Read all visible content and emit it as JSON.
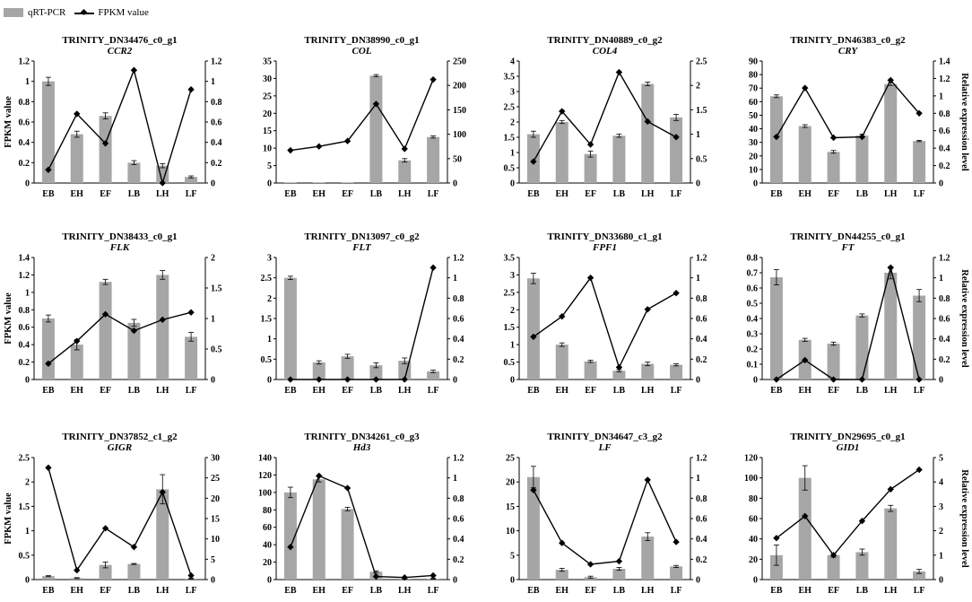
{
  "legend": {
    "bar_label": "qRT-PCR",
    "line_label": "FPKM value"
  },
  "colors": {
    "bar": "#a6a6a6",
    "line": "#000000",
    "axis": "#000000"
  },
  "chart_data": [
    {
      "type": "bar+line",
      "title": "TRINITY_DN34476_c0_g1",
      "gene": "CCR2",
      "categories": [
        "EB",
        "EH",
        "EF",
        "LB",
        "LH",
        "LF"
      ],
      "bars": [
        1.0,
        0.48,
        0.66,
        0.2,
        0.17,
        0.06
      ],
      "bar_err": [
        0.04,
        0.03,
        0.03,
        0.02,
        0.02,
        0.01
      ],
      "line": [
        0.13,
        0.68,
        0.39,
        1.11,
        0.0,
        0.92
      ],
      "left_ylim": [
        0,
        1.2
      ],
      "left_ticks": [
        "0",
        "0.2",
        "0.4",
        "0.6",
        "0.8",
        "1",
        "1.2"
      ],
      "right_ylim": [
        0,
        1.2
      ],
      "right_ticks": [
        "0",
        "0.2",
        "0.4",
        "0.6",
        "0.8",
        "1",
        "1.2"
      ],
      "left_label": "FPKM value",
      "right_label": ""
    },
    {
      "type": "bar+line",
      "title": "TRINITY_DN38990_c0_g1",
      "gene": "COL",
      "categories": [
        "EB",
        "EH",
        "EF",
        "LB",
        "LH",
        "LF"
      ],
      "bars": [
        0.1,
        0.1,
        0.1,
        30.8,
        6.5,
        13.2
      ],
      "bar_err": [
        0,
        0,
        0,
        0.3,
        0.5,
        0.3
      ],
      "line": [
        67,
        75,
        86,
        162,
        70,
        212
      ],
      "left_ylim": [
        0,
        35
      ],
      "left_ticks": [
        "0",
        "5",
        "10",
        "15",
        "20",
        "25",
        "30",
        "35"
      ],
      "right_ylim": [
        0,
        250
      ],
      "right_ticks": [
        "0",
        "50",
        "100",
        "150",
        "200",
        "250"
      ],
      "left_label": "",
      "right_label": ""
    },
    {
      "type": "bar+line",
      "title": "TRINITY_DN40889_c0_g2",
      "gene": "COL4",
      "categories": [
        "EB",
        "EH",
        "EF",
        "LB",
        "LH",
        "LF"
      ],
      "bars": [
        1.6,
        2.0,
        0.95,
        1.55,
        3.25,
        2.15
      ],
      "bar_err": [
        0.1,
        0.05,
        0.1,
        0.05,
        0.06,
        0.1
      ],
      "line": [
        0.44,
        1.47,
        0.79,
        2.27,
        1.26,
        0.94
      ],
      "left_ylim": [
        0,
        4
      ],
      "left_ticks": [
        "0",
        "0.5",
        "1",
        "1.5",
        "2",
        "2.5",
        "3",
        "3.5",
        "4"
      ],
      "right_ylim": [
        0,
        2.5
      ],
      "right_ticks": [
        "0",
        "0.5",
        "1",
        "1.5",
        "2",
        "2.5"
      ],
      "left_label": "",
      "right_label": ""
    },
    {
      "type": "bar+line",
      "title": "TRINITY_DN46383_c0_g2",
      "gene": "CRY",
      "categories": [
        "EB",
        "EH",
        "EF",
        "LB",
        "LH",
        "LF"
      ],
      "bars": [
        64,
        42,
        23,
        35,
        73,
        31
      ],
      "bar_err": [
        1,
        1,
        1,
        1,
        1,
        0.5
      ],
      "line": [
        0.53,
        1.09,
        0.52,
        0.53,
        1.18,
        0.8
      ],
      "left_ylim": [
        0,
        90
      ],
      "left_ticks": [
        "0",
        "10",
        "20",
        "30",
        "40",
        "50",
        "60",
        "70",
        "80",
        "90"
      ],
      "right_ylim": [
        0,
        1.4
      ],
      "right_ticks": [
        "0",
        "0.2",
        "0.4",
        "0.6",
        "0.8",
        "1",
        "1.2",
        "1.4"
      ],
      "left_label": "",
      "right_label": "Relative expression level"
    },
    {
      "type": "bar+line",
      "title": "TRINITY_DN38433_c0_g1",
      "gene": "FLK",
      "categories": [
        "EB",
        "EH",
        "EF",
        "LB",
        "LH",
        "LF"
      ],
      "bars": [
        0.7,
        0.4,
        1.12,
        0.65,
        1.2,
        0.49
      ],
      "bar_err": [
        0.04,
        0.06,
        0.03,
        0.04,
        0.05,
        0.05
      ],
      "line": [
        0.26,
        0.63,
        1.07,
        0.8,
        0.98,
        1.1
      ],
      "left_ylim": [
        0,
        1.4
      ],
      "left_ticks": [
        "0",
        "0.2",
        "0.4",
        "0.6",
        "0.8",
        "1",
        "1.2",
        "1.4"
      ],
      "right_ylim": [
        0,
        2
      ],
      "right_ticks": [
        "0",
        "0.5",
        "1",
        "1.5",
        "2"
      ],
      "left_label": "FPKM value",
      "right_label": ""
    },
    {
      "type": "bar+line",
      "title": "TRINITY_DN13097_c0_g2",
      "gene": "FLT",
      "categories": [
        "EB",
        "EH",
        "EF",
        "LB",
        "LH",
        "LF"
      ],
      "bars": [
        2.5,
        0.42,
        0.57,
        0.35,
        0.46,
        0.2
      ],
      "bar_err": [
        0.04,
        0.04,
        0.05,
        0.06,
        0.07,
        0.03
      ],
      "line": [
        0,
        0,
        0,
        0,
        0,
        1.1
      ],
      "left_ylim": [
        0,
        3
      ],
      "left_ticks": [
        "0",
        "0.5",
        "1",
        "1.5",
        "2",
        "2.5",
        "3"
      ],
      "right_ylim": [
        0,
        1.2
      ],
      "right_ticks": [
        "0",
        "0.2",
        "0.4",
        "0.6",
        "0.8",
        "1",
        "1.2"
      ],
      "left_label": "",
      "right_label": ""
    },
    {
      "type": "bar+line",
      "title": "TRINITY_DN33680_c1_g1",
      "gene": "FPF1",
      "categories": [
        "EB",
        "EH",
        "EF",
        "LB",
        "LH",
        "LF"
      ],
      "bars": [
        2.9,
        1.0,
        0.52,
        0.25,
        0.45,
        0.42
      ],
      "bar_err": [
        0.15,
        0.05,
        0.03,
        0.03,
        0.05,
        0.03
      ],
      "line": [
        0.42,
        0.62,
        1.0,
        0.12,
        0.69,
        0.85
      ],
      "left_ylim": [
        0,
        3.5
      ],
      "left_ticks": [
        "0",
        "0.5",
        "1",
        "1.5",
        "2",
        "2.5",
        "3",
        "3.5"
      ],
      "right_ylim": [
        0,
        1.2
      ],
      "right_ticks": [
        "0",
        "0.2",
        "0.4",
        "0.6",
        "0.8",
        "1",
        "1.2"
      ],
      "left_label": "",
      "right_label": ""
    },
    {
      "type": "bar+line",
      "title": "TRINITY_DN44255_c0_g1",
      "gene": "FT",
      "categories": [
        "EB",
        "EH",
        "EF",
        "LB",
        "LH",
        "LF"
      ],
      "bars": [
        0.67,
        0.26,
        0.235,
        0.42,
        0.7,
        0.55
      ],
      "bar_err": [
        0.05,
        0.01,
        0.01,
        0.01,
        0.04,
        0.04
      ],
      "line": [
        0,
        0.19,
        0,
        0,
        1.1,
        0
      ],
      "left_ylim": [
        0,
        0.8
      ],
      "left_ticks": [
        "0",
        "0.1",
        "0.2",
        "0.3",
        "0.4",
        "0.5",
        "0.6",
        "0.7",
        "0.8"
      ],
      "right_ylim": [
        0,
        1.2
      ],
      "right_ticks": [
        "0",
        "0.2",
        "0.4",
        "0.6",
        "0.8",
        "1",
        "1.2"
      ],
      "left_label": "",
      "right_label": "Relative expression level"
    },
    {
      "type": "bar+line",
      "title": "TRINITY_DN37852_c1_g2",
      "gene": "GIGR",
      "categories": [
        "EB",
        "EH",
        "EF",
        "LB",
        "LH",
        "LF"
      ],
      "bars": [
        0.07,
        0.03,
        0.3,
        0.32,
        1.85,
        0.02
      ],
      "bar_err": [
        0.01,
        0.01,
        0.06,
        0.01,
        0.3,
        0.01
      ],
      "line": [
        27.5,
        2.3,
        12.6,
        8.0,
        21.5,
        1.0
      ],
      "left_ylim": [
        0,
        2.5
      ],
      "left_ticks": [
        "0",
        "0.5",
        "1",
        "1.5",
        "2",
        "2.5"
      ],
      "right_ylim": [
        0,
        30
      ],
      "right_ticks": [
        "0",
        "5",
        "10",
        "15",
        "20",
        "25",
        "30"
      ],
      "left_label": "FPKM value",
      "right_label": ""
    },
    {
      "type": "bar+line",
      "title": "TRINITY_DN34261_c0_g3",
      "gene": "Hd3",
      "categories": [
        "EB",
        "EH",
        "EF",
        "LB",
        "LH",
        "LF"
      ],
      "bars": [
        100,
        115,
        81,
        9,
        1,
        1
      ],
      "bar_err": [
        6,
        3,
        2,
        1,
        0.5,
        0.5
      ],
      "line": [
        0.32,
        1.02,
        0.9,
        0.03,
        0.02,
        0.04
      ],
      "left_ylim": [
        0,
        140
      ],
      "left_ticks": [
        "0",
        "20",
        "40",
        "60",
        "80",
        "100",
        "120",
        "140"
      ],
      "right_ylim": [
        0,
        1.2
      ],
      "right_ticks": [
        "0",
        "0.2",
        "0.4",
        "0.6",
        "0.8",
        "1",
        "1.2"
      ],
      "left_label": "",
      "right_label": ""
    },
    {
      "type": "bar+line",
      "title": "TRINITY_DN34647_c3_g2",
      "gene": "LF",
      "categories": [
        "EB",
        "EH",
        "EF",
        "LB",
        "LH",
        "LF"
      ],
      "bars": [
        21,
        2,
        0.5,
        2.2,
        8.8,
        2.7
      ],
      "bar_err": [
        2.2,
        0.3,
        0.2,
        0.3,
        0.8,
        0.2
      ],
      "line": [
        0.88,
        0.36,
        0.15,
        0.18,
        0.98,
        0.37
      ],
      "left_ylim": [
        0,
        25
      ],
      "left_ticks": [
        "0",
        "5",
        "10",
        "15",
        "20",
        "25"
      ],
      "right_ylim": [
        0,
        1.2
      ],
      "right_ticks": [
        "0",
        "0.2",
        "0.4",
        "0.6",
        "0.8",
        "1",
        "1.2"
      ],
      "left_label": "",
      "right_label": ""
    },
    {
      "type": "bar+line",
      "title": "TRINITY_DN29695_c0_g1",
      "gene": "GID1",
      "categories": [
        "EB",
        "EH",
        "EF",
        "LB",
        "LH",
        "LF"
      ],
      "bars": [
        24,
        100,
        24,
        27,
        70,
        8
      ],
      "bar_err": [
        10,
        12,
        2,
        3,
        3,
        2
      ],
      "line": [
        1.7,
        2.6,
        1.0,
        2.4,
        3.7,
        4.5
      ],
      "left_ylim": [
        0,
        120
      ],
      "left_ticks": [
        "0",
        "20",
        "40",
        "60",
        "80",
        "100",
        "120"
      ],
      "right_ylim": [
        0,
        5
      ],
      "right_ticks": [
        "0",
        "1",
        "2",
        "3",
        "4",
        "5"
      ],
      "left_label": "",
      "right_label": "Relative expression level"
    }
  ]
}
